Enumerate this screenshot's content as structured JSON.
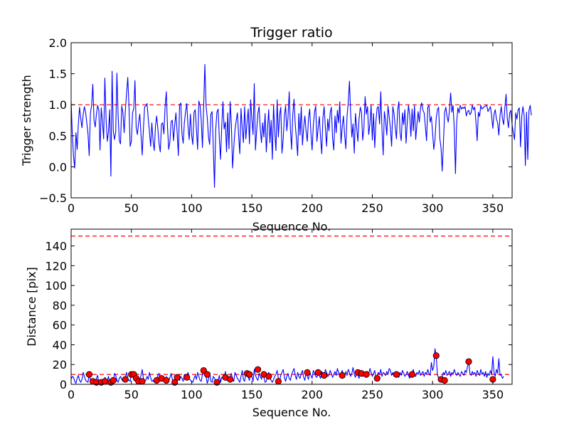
{
  "chart_data": [
    {
      "type": "line",
      "title": "Trigger ratio",
      "xlabel": "Sequence No.",
      "ylabel": "Trigger strength",
      "xlim": [
        0,
        366
      ],
      "ylim": [
        -0.5,
        2.0
      ],
      "xticks": [
        0,
        50,
        100,
        150,
        200,
        250,
        300,
        350
      ],
      "yticks": [
        -0.5,
        0.0,
        0.5,
        1.0,
        1.5,
        2.0
      ],
      "ytick_labels": [
        "−0.5",
        "0.0",
        "0.5",
        "1.0",
        "1.5",
        "2.0"
      ],
      "grid": false,
      "line_color": "#0000ff",
      "threshold": {
        "y": 1.0,
        "color": "#ff0000",
        "style": "dashed"
      },
      "series": [
        {
          "x_start": 0,
          "x_step": 1,
          "values": [
            1.05,
            0.52,
            0.16,
            -0.02,
            0.55,
            0.28,
            0.69,
            0.96,
            0.78,
            0.63,
            0.84,
            0.97,
            0.88,
            0.71,
            0.53,
            0.18,
            0.86,
            0.99,
            1.33,
            0.75,
            0.64,
            0.85,
            0.99,
            0.91,
            0.27,
            0.95,
            0.72,
            0.45,
            1.43,
            0.78,
            0.41,
            0.57,
            0.92,
            -0.15,
            1.54,
            0.58,
            0.44,
            0.56,
            1.51,
            0.83,
            0.42,
            0.37,
            0.98,
            0.87,
            0.55,
            0.91,
            1.18,
            1.44,
            0.99,
            0.33,
            0.41,
            0.87,
            0.94,
            1.39,
            0.63,
            0.52,
            0.71,
            0.85,
            0.52,
            0.19,
            0.61,
            0.97,
            0.98,
            1.02,
            0.78,
            0.57,
            0.33,
            0.71,
            0.42,
            0.26,
            0.65,
            0.82,
            0.61,
            0.37,
            0.24,
            0.69,
            0.71,
            0.53,
            0.97,
            1.21,
            0.64,
            0.28,
            0.41,
            0.73,
            0.75,
            0.42,
            0.68,
            0.87,
            0.55,
            0.18,
            0.99,
            1.03,
            0.53,
            0.38,
            0.71,
            0.89,
            1.02,
            0.66,
            0.44,
            0.85,
            0.51,
            0.36,
            0.88,
            0.92,
            0.61,
            0.28,
            1.06,
            0.99,
            0.75,
            0.31,
            0.98,
            1.65,
            0.98,
            0.79,
            0.48,
            0.36,
            0.85,
            0.89,
            0.31,
            -0.33,
            0.59,
            0.88,
            0.93,
            0.47,
            0.12,
            0.65,
            1.05,
            0.61,
            0.72,
            0.24,
            0.87,
            0.29,
            1.05,
            0.68,
            -0.02,
            0.31,
            0.59,
            0.74,
            0.87,
            0.51,
            0.21,
            0.94,
            0.63,
            0.39,
            0.97,
            0.45,
            0.71,
            0.93,
            0.37,
            1.08,
            0.77,
            0.52,
            1.34,
            0.27,
            0.59,
            0.86,
            0.97,
            0.61,
            0.39,
            0.71,
            0.48,
            0.86,
            0.24,
            0.61,
            0.92,
            0.39,
            0.75,
            0.12,
            0.99,
            0.58,
            0.26,
            1.08,
            0.48,
            0.83,
            0.96,
            0.22,
            0.44,
            0.82,
            0.98,
            0.58,
            0.79,
            1.21,
            0.61,
            0.28,
            0.85,
            1.09,
            0.69,
            0.45,
            0.18,
            0.86,
            0.51,
            0.97,
            0.35,
            0.63,
            0.82,
            0.58,
            0.41,
            0.78,
            0.93,
            0.55,
            0.27,
            0.66,
            0.88,
            0.98,
            0.41,
            0.62,
            0.81,
            0.48,
            0.21,
            0.79,
            0.97,
            0.64,
            0.33,
            0.77,
            0.58,
            0.87,
            0.96,
            0.46,
            0.27,
            0.82,
            0.55,
            0.91,
            0.71,
            1.05,
            0.38,
            0.64,
            0.82,
            0.52,
            0.29,
            0.81,
            1.04,
            1.38,
            0.86,
            0.48,
            0.69,
            0.22,
            0.86,
            0.63,
            0.41,
            0.78,
            0.96,
            0.88,
            0.43,
            0.62,
            1.13,
            0.85,
            0.97,
            0.52,
            0.69,
            0.99,
            0.43,
            0.86,
            0.31,
            0.74,
            0.95,
            0.97,
            0.69,
            1.21,
            0.61,
            0.19,
            0.89,
            0.74,
            0.51,
            0.98,
            0.81,
            0.62,
            0.33,
            0.97,
            0.86,
            0.64,
            0.45,
            0.91,
            1.05,
            0.55,
            0.42,
            0.87,
            0.68,
            0.92,
            0.38,
            0.72,
            0.99,
            0.84,
            0.49,
            0.93,
            0.58,
            0.99,
            0.44,
            0.68,
            0.89,
            0.72,
            0.95,
            1.03,
            0.91,
            0.87,
            0.65,
            0.42,
            0.96,
            0.99,
            0.72,
            0.81,
            0.55,
            0.28,
            0.44,
            0.78,
            0.92,
            0.96,
            0.46,
            0.31,
            -0.07,
            0.38,
            0.88,
            0.96,
            0.81,
            0.72,
            0.91,
            1.19,
            0.88,
            0.99,
            0.61,
            -0.11,
            0.72,
            0.95,
            0.87,
            0.99,
            0.93,
            0.96,
            0.94,
            0.97,
            0.82,
            0.89,
            0.91,
            0.84,
            0.87,
            0.99,
            0.92,
            0.96,
            0.72,
            0.42,
            0.88,
            0.81,
            0.99,
            0.93,
            0.95,
            0.97,
            0.98,
            0.99,
            0.89,
            0.93,
            0.97,
            0.82,
            0.62,
            0.85,
            0.92,
            0.77,
            0.71,
            0.51,
            0.83,
            0.97,
            0.78,
            0.68,
            0.95,
            1.17,
            0.78,
            0.63,
            0.87,
            0.91,
            0.68,
            0.55,
            0.44,
            0.87,
            0.77,
            0.92,
            0.95,
            0.32,
            0.81,
            0.97,
            0.83,
            0.02,
            0.88,
            0.12,
            0.91,
            0.99,
            0.83
          ]
        }
      ]
    },
    {
      "type": "line",
      "title": "",
      "xlabel": "Sequence No.",
      "ylabel": "Distance [pix]",
      "xlim": [
        0,
        366
      ],
      "ylim": [
        0,
        157
      ],
      "xticks": [
        0,
        50,
        100,
        150,
        200,
        250,
        300,
        350
      ],
      "yticks": [
        0,
        20,
        40,
        60,
        80,
        100,
        120,
        140
      ],
      "grid": false,
      "line_color": "#0000ff",
      "marker_color": "#ff0000",
      "thresholds": [
        {
          "y": 10,
          "color": "#ff0000",
          "style": "dashed"
        },
        {
          "y": 150,
          "color": "#ff0000",
          "style": "dashed"
        }
      ],
      "series": [
        {
          "x_start": 0,
          "x_step": 1,
          "values": [
            5,
            8,
            7,
            3,
            1,
            6,
            9,
            4,
            2,
            5,
            12,
            8,
            4,
            3,
            2,
            10,
            5,
            1,
            2,
            1,
            3,
            6,
            9,
            2,
            4,
            1,
            3,
            2,
            7,
            5,
            3,
            8,
            2,
            4,
            6,
            3,
            11,
            9,
            4,
            2,
            6,
            8,
            5,
            3,
            5,
            7,
            12,
            6,
            4,
            3,
            10,
            11,
            6,
            4,
            3,
            8,
            2,
            5,
            9,
            15,
            6,
            3,
            4,
            8,
            5,
            12,
            7,
            3,
            4,
            2,
            4,
            6,
            9,
            11,
            5,
            3,
            4,
            6,
            2,
            8,
            4,
            3,
            7,
            11,
            5,
            2,
            3,
            7,
            9,
            5,
            4,
            8,
            6,
            3,
            10,
            5,
            8,
            12,
            6,
            4,
            3,
            2,
            6,
            9,
            5,
            12,
            8,
            4,
            3,
            10,
            14,
            11,
            8,
            1,
            5,
            12,
            3,
            2,
            8,
            6,
            4,
            1,
            3,
            9,
            2,
            7,
            6,
            5,
            13,
            4,
            7,
            3,
            8,
            11,
            5,
            3,
            12,
            9,
            6,
            4,
            2,
            8,
            14,
            5,
            3,
            11,
            9,
            7,
            4,
            12,
            8,
            3,
            15,
            9,
            6,
            4,
            11,
            8,
            5,
            13,
            7,
            2,
            3,
            9,
            12,
            6,
            4,
            2,
            5,
            8,
            10,
            14,
            6,
            3,
            9,
            12,
            15,
            7,
            3,
            8,
            11,
            6,
            4,
            10,
            13,
            16,
            9,
            5,
            12,
            8,
            6,
            11,
            14,
            7,
            4,
            12,
            8,
            5,
            13,
            9,
            6,
            14,
            11,
            8,
            7,
            12,
            9,
            6,
            13,
            10,
            7,
            15,
            12,
            8,
            9,
            14,
            11,
            7,
            10,
            13,
            9,
            16,
            12,
            8,
            11,
            14,
            10,
            7,
            13,
            9,
            15,
            12,
            8,
            11,
            17,
            10,
            7,
            13,
            9,
            6,
            14,
            12,
            8,
            11,
            9,
            7,
            13,
            10,
            16,
            12,
            8,
            11,
            14,
            6,
            9,
            12,
            10,
            15,
            8,
            12,
            11,
            9,
            13,
            10,
            16,
            14,
            9,
            12,
            8,
            11,
            13,
            10,
            7,
            12,
            9,
            14,
            11,
            8,
            10,
            13,
            9,
            6,
            12,
            11,
            15,
            9,
            8,
            12,
            10,
            14,
            9,
            11,
            13,
            8,
            12,
            10,
            15,
            11,
            9,
            22,
            14,
            18,
            36,
            29,
            10,
            6,
            4,
            5,
            8,
            12,
            10,
            14,
            9,
            11,
            13,
            8,
            12,
            10,
            15,
            11,
            9,
            12,
            10,
            8,
            13,
            11,
            9,
            14,
            12,
            18,
            23,
            11,
            9,
            13,
            10,
            12,
            8,
            14,
            11,
            9,
            15,
            10,
            12,
            8,
            13,
            7,
            11,
            9,
            14,
            10,
            28,
            12,
            8,
            15,
            11,
            26,
            9,
            10,
            6,
            8
          ],
          "markers": [
            [
              15,
              10
            ],
            [
              18,
              3
            ],
            [
              21,
              2
            ],
            [
              25,
              2
            ],
            [
              28,
              3
            ],
            [
              33,
              2
            ],
            [
              35,
              4
            ],
            [
              45,
              5
            ],
            [
              50,
              10
            ],
            [
              52,
              10
            ],
            [
              54,
              6
            ],
            [
              56,
              3
            ],
            [
              59,
              3
            ],
            [
              71,
              4
            ],
            [
              75,
              6
            ],
            [
              79,
              4
            ],
            [
              86,
              2
            ],
            [
              88,
              7
            ],
            [
              96,
              7
            ],
            [
              110,
              14
            ],
            [
              113,
              10
            ],
            [
              121,
              2
            ],
            [
              128,
              7
            ],
            [
              132,
              5
            ],
            [
              146,
              11
            ],
            [
              148,
              10
            ],
            [
              155,
              15
            ],
            [
              160,
              10
            ],
            [
              164,
              8
            ],
            [
              172,
              3
            ],
            [
              196,
              12
            ],
            [
              205,
              12
            ],
            [
              210,
              9
            ],
            [
              225,
              9
            ],
            [
              238,
              12
            ],
            [
              241,
              11
            ],
            [
              245,
              10
            ],
            [
              254,
              6
            ],
            [
              270,
              10
            ],
            [
              283,
              10
            ],
            [
              303,
              29
            ],
            [
              307,
              5
            ],
            [
              310,
              4
            ],
            [
              330,
              23
            ],
            [
              350,
              5
            ]
          ]
        }
      ]
    }
  ]
}
